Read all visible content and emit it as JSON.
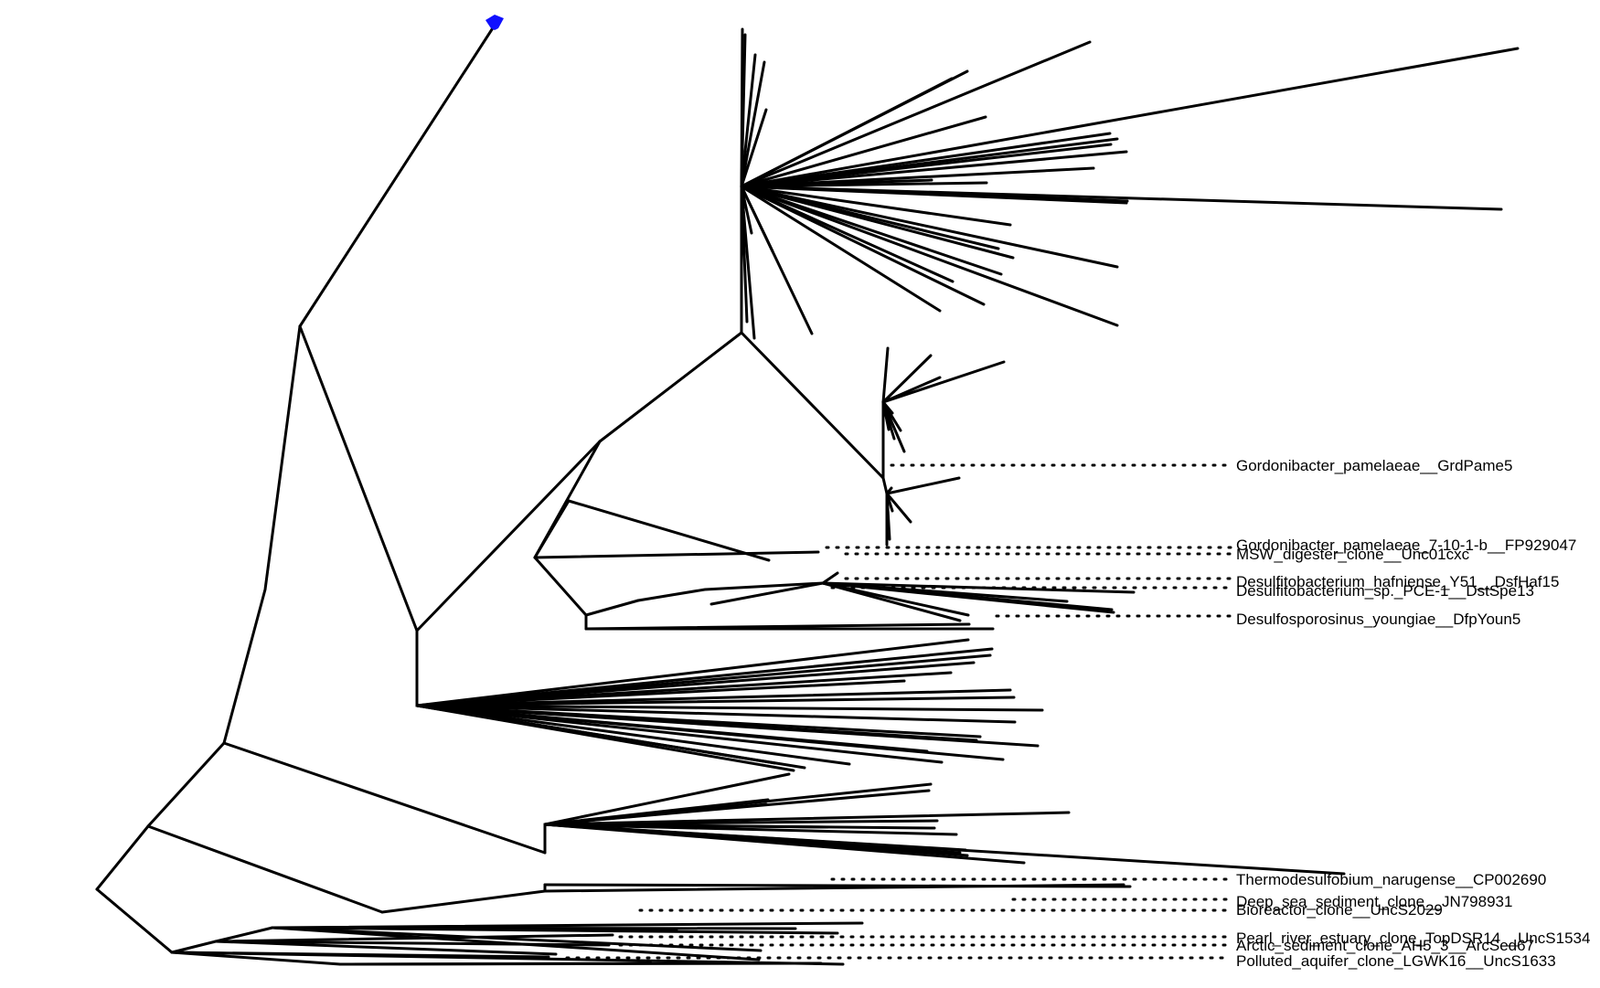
{
  "tree": {
    "root_marker_color": "#1010ff",
    "labels": [
      {
        "id": "gordonibacter-grdpame5",
        "text": "Gordonibacter_pamelaeae__GrdPame5"
      },
      {
        "id": "gordonibacter-fp929",
        "text": "Gordonibacter_pamelaeae_7-10-1-b__FP929047"
      },
      {
        "id": "msw-digester",
        "text": "MSW_digester_clone__Unc01cxc"
      },
      {
        "id": "desulfitobacterium-hafniense",
        "text": "Desulfitobacterium_hafniense_Y51__DsfHaf15"
      },
      {
        "id": "desulfitobacterium-pce1",
        "text": "Desulfitobacterium_sp._PCE-1__DstSpe13"
      },
      {
        "id": "desulfosporosinus",
        "text": "Desulfosporosinus_youngiae__DfpYoun5"
      },
      {
        "id": "thermodesulfobium",
        "text": "Thermodesulfobium_narugense__CP002690"
      },
      {
        "id": "deep-sea",
        "text": "Deep_sea_sediment_clone__JN798931"
      },
      {
        "id": "bioreactor",
        "text": "Bioreactor_clone__UncS2029"
      },
      {
        "id": "pearl-river",
        "text": "Pearl_river_estuary_clone_TopDSR14__UncS1534"
      },
      {
        "id": "arctic",
        "text": "Arctic_sediment_clone_AH5_3__ArcSed67"
      },
      {
        "id": "polluted-aquifer",
        "text": "Polluted_aquifer_clone_LGWK16__UncS1633"
      }
    ]
  }
}
